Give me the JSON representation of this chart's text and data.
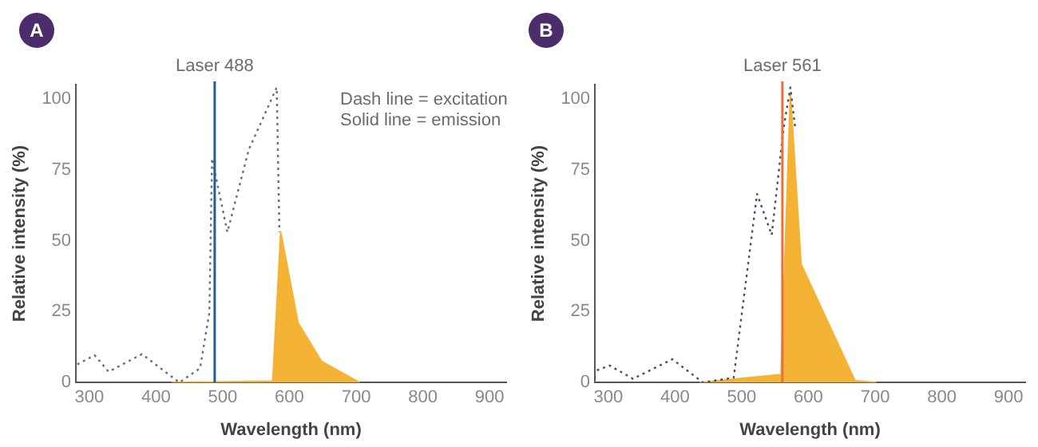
{
  "chart_data": [
    {
      "type": "line",
      "title": "A",
      "xlabel": "Wavelength (nm)",
      "ylabel": "Relative intensity (%)",
      "xlim": [
        280,
        925
      ],
      "xticks": [
        300,
        400,
        500,
        600,
        700,
        800,
        900
      ],
      "ylim": [
        0,
        105
      ],
      "yticks": [
        0,
        25,
        50,
        75,
        100
      ],
      "grid": false,
      "legend": false,
      "marker": "none",
      "annotations": [
        "Dash line = excitation",
        "Solid line = emission"
      ],
      "ref_lines": [
        {
          "axis": "x",
          "value": 488,
          "label": "Laser 488",
          "color": "#1f5f99"
        }
      ],
      "series": [
        {
          "type": "line",
          "line_style": "dotted",
          "color": "#6b6e7a",
          "x": [
            282,
            308,
            329,
            379,
            435,
            466,
            480,
            484,
            507,
            539,
            581,
            585
          ],
          "values": [
            6.4,
            9.6,
            3.8,
            10,
            0,
            5,
            24.6,
            79,
            53,
            82,
            104,
            53
          ]
        },
        {
          "type": "area",
          "line_style": "solid",
          "color": "#f5b335",
          "x": [
            423,
            575,
            587,
            613,
            648,
            705
          ],
          "values": [
            0,
            0.5,
            53,
            21,
            7.5,
            0
          ]
        }
      ]
    },
    {
      "type": "line",
      "title": "B",
      "xlabel": "Wavelength (nm)",
      "ylabel": "Relative intensity (%)",
      "xlim": [
        280,
        925
      ],
      "xticks": [
        300,
        400,
        500,
        600,
        700,
        800,
        900
      ],
      "ylim": [
        0,
        105
      ],
      "yticks": [
        0,
        25,
        50,
        75,
        100
      ],
      "grid": false,
      "legend": false,
      "marker": "none",
      "ref_lines": [
        {
          "axis": "x",
          "value": 561,
          "label": "Laser 561",
          "color": "#e8703a"
        }
      ],
      "series": [
        {
          "type": "line",
          "line_style": "dotted",
          "color": "#4a4e69",
          "x": [
            283,
            302,
            337,
            396,
            442,
            488,
            523,
            545,
            563,
            573,
            580
          ],
          "values": [
            4.3,
            6,
            1.3,
            8.2,
            0,
            1.7,
            66.5,
            52,
            90,
            104,
            90
          ]
        },
        {
          "type": "area",
          "line_style": "solid",
          "color": "#f5b335",
          "x": [
            437,
            559,
            573,
            589,
            670,
            702
          ],
          "values": [
            0,
            2.8,
            102,
            41.7,
            0.6,
            0
          ]
        }
      ]
    }
  ]
}
